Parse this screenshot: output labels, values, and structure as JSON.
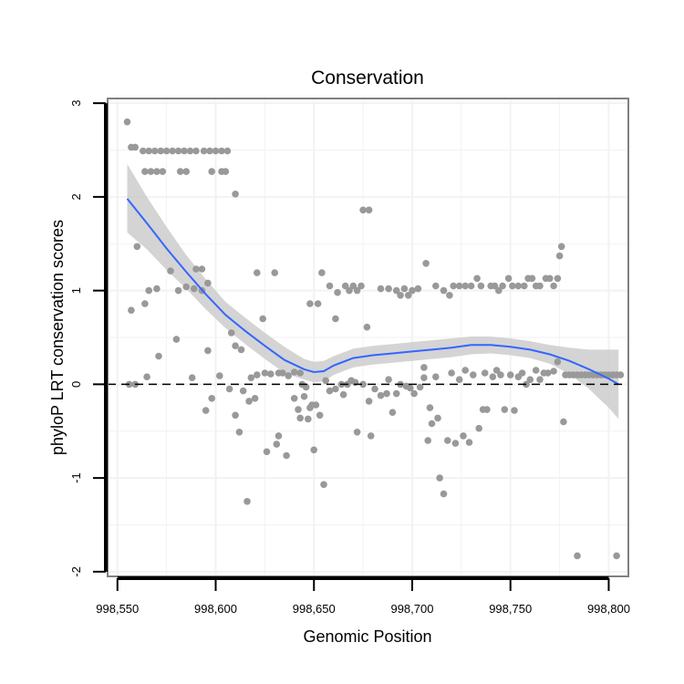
{
  "chart_data": {
    "type": "scatter",
    "title": "Conservation",
    "xlabel": "Genomic Position",
    "ylabel": "phyloP LRT conservation scores",
    "xlim": [
      998545,
      998810
    ],
    "ylim": [
      -2.05,
      3.05
    ],
    "x_ticks": [
      998550,
      998600,
      998650,
      998700,
      998750,
      998800
    ],
    "x_tick_labels": [
      "998,550",
      "998,600",
      "998,650",
      "998,700",
      "998,750",
      "998,800"
    ],
    "y_ticks": [
      -2,
      -1,
      0,
      1,
      2,
      3
    ],
    "y_tick_labels": [
      "-2",
      "-1",
      "0",
      "1",
      "2",
      "3"
    ],
    "reference_line_y": 0,
    "colors": {
      "points": "#999999",
      "smooth": "#3366FF",
      "ribbon": "#CCCCCC",
      "panel_border": "#808080",
      "grid": "#F2F2F2"
    },
    "points": [
      [
        998555,
        2.8
      ],
      [
        998557,
        2.53
      ],
      [
        998559,
        2.53
      ],
      [
        998563,
        2.49
      ],
      [
        998566,
        2.49
      ],
      [
        998569,
        2.49
      ],
      [
        998572,
        2.49
      ],
      [
        998575,
        2.49
      ],
      [
        998578,
        2.49
      ],
      [
        998581,
        2.49
      ],
      [
        998584,
        2.49
      ],
      [
        998587,
        2.49
      ],
      [
        998590,
        2.49
      ],
      [
        998594,
        2.49
      ],
      [
        998597,
        2.49
      ],
      [
        998600,
        2.49
      ],
      [
        998603,
        2.49
      ],
      [
        998606,
        2.49
      ],
      [
        998564,
        2.27
      ],
      [
        998567,
        2.27
      ],
      [
        998570,
        2.27
      ],
      [
        998573,
        2.27
      ],
      [
        998582,
        2.27
      ],
      [
        998585,
        2.27
      ],
      [
        998598,
        2.27
      ],
      [
        998603,
        2.27
      ],
      [
        998605,
        2.27
      ],
      [
        998610,
        2.03
      ],
      [
        998675,
        1.86
      ],
      [
        998678,
        1.86
      ],
      [
        998560,
        1.47
      ],
      [
        998776,
        1.47
      ],
      [
        998775,
        1.37
      ],
      [
        998577,
        1.21
      ],
      [
        998590,
        1.23
      ],
      [
        998593,
        1.23
      ],
      [
        998621,
        1.19
      ],
      [
        998630,
        1.19
      ],
      [
        998654,
        1.19
      ],
      [
        998707,
        1.29
      ],
      [
        998566,
        1.0
      ],
      [
        998570,
        1.02
      ],
      [
        998581,
        1.0
      ],
      [
        998585,
        1.04
      ],
      [
        998589,
        1.02
      ],
      [
        998593,
        1.0
      ],
      [
        998596,
        1.08
      ],
      [
        998652,
        0.86
      ],
      [
        998648,
        0.86
      ],
      [
        998658,
        1.05
      ],
      [
        998662,
        0.98
      ],
      [
        998666,
        1.05
      ],
      [
        998668,
        1.0
      ],
      [
        998670,
        1.05
      ],
      [
        998672,
        1.0
      ],
      [
        998674,
        1.05
      ],
      [
        998684,
        1.02
      ],
      [
        998688,
        1.02
      ],
      [
        998692,
        1.0
      ],
      [
        998694,
        0.95
      ],
      [
        998696,
        1.02
      ],
      [
        998698,
        0.95
      ],
      [
        998700,
        1.0
      ],
      [
        998703,
        1.02
      ],
      [
        998712,
        1.05
      ],
      [
        998716,
        1.0
      ],
      [
        998719,
        0.95
      ],
      [
        998721,
        1.05
      ],
      [
        998724,
        1.05
      ],
      [
        998727,
        1.05
      ],
      [
        998730,
        1.05
      ],
      [
        998733,
        1.13
      ],
      [
        998735,
        1.05
      ],
      [
        998740,
        1.05
      ],
      [
        998742,
        1.05
      ],
      [
        998744,
        1.0
      ],
      [
        998746,
        1.05
      ],
      [
        998749,
        1.13
      ],
      [
        998751,
        1.05
      ],
      [
        998754,
        1.05
      ],
      [
        998757,
        1.05
      ],
      [
        998759,
        1.13
      ],
      [
        998761,
        1.13
      ],
      [
        998763,
        1.05
      ],
      [
        998765,
        1.05
      ],
      [
        998768,
        1.13
      ],
      [
        998770,
        1.13
      ],
      [
        998772,
        1.05
      ],
      [
        998774,
        1.13
      ],
      [
        998557,
        0.79
      ],
      [
        998564,
        0.86
      ],
      [
        998580,
        0.48
      ],
      [
        998608,
        0.55
      ],
      [
        998610,
        0.41
      ],
      [
        998613,
        0.37
      ],
      [
        998624,
        0.7
      ],
      [
        998661,
        0.7
      ],
      [
        998677,
        0.61
      ],
      [
        998571,
        0.3
      ],
      [
        998588,
        0.07
      ],
      [
        998596,
        0.36
      ],
      [
        998556,
        0.0
      ],
      [
        998559,
        0.0
      ],
      [
        998565,
        0.08
      ],
      [
        998602,
        0.09
      ],
      [
        998607,
        -0.05
      ],
      [
        998598,
        -0.15
      ],
      [
        998595,
        -0.28
      ],
      [
        998610,
        -0.33
      ],
      [
        998612,
        -0.51
      ],
      [
        998614,
        -0.07
      ],
      [
        998616,
        -1.25
      ],
      [
        998618,
        0.07
      ],
      [
        998621,
        0.1
      ],
      [
        998625,
        0.12
      ],
      [
        998628,
        0.11
      ],
      [
        998632,
        0.12
      ],
      [
        998634,
        0.12
      ],
      [
        998637,
        0.09
      ],
      [
        998640,
        0.13
      ],
      [
        998643,
        0.12
      ],
      [
        998617,
        -0.18
      ],
      [
        998620,
        -0.15
      ],
      [
        998626,
        -0.72
      ],
      [
        998631,
        -0.64
      ],
      [
        998632,
        -0.55
      ],
      [
        998636,
        -0.76
      ],
      [
        998640,
        -0.15
      ],
      [
        998642,
        -0.27
      ],
      [
        998643,
        -0.36
      ],
      [
        998645,
        -0.13
      ],
      [
        998647,
        -0.37
      ],
      [
        998648,
        -0.25
      ],
      [
        998649,
        -0.22
      ],
      [
        998650,
        -0.7
      ],
      [
        998651,
        -0.22
      ],
      [
        998653,
        -0.33
      ],
      [
        998655,
        -1.07
      ],
      [
        998644,
        0.0
      ],
      [
        998646,
        -0.03
      ],
      [
        998656,
        0.04
      ],
      [
        998658,
        -0.07
      ],
      [
        998661,
        -0.05
      ],
      [
        998664,
        0.0
      ],
      [
        998667,
        0.0
      ],
      [
        998669,
        0.04
      ],
      [
        998671,
        0.02
      ],
      [
        998665,
        -0.11
      ],
      [
        998672,
        -0.51
      ],
      [
        998675,
        0.0
      ],
      [
        998678,
        -0.18
      ],
      [
        998679,
        -0.55
      ],
      [
        998681,
        -0.05
      ],
      [
        998684,
        -0.12
      ],
      [
        998687,
        -0.1
      ],
      [
        998690,
        -0.3
      ],
      [
        998688,
        0.05
      ],
      [
        998692,
        -0.1
      ],
      [
        998694,
        0.0
      ],
      [
        998697,
        -0.02
      ],
      [
        998699,
        -0.04
      ],
      [
        998701,
        -0.1
      ],
      [
        998704,
        -0.03
      ],
      [
        998706,
        0.07
      ],
      [
        998708,
        -0.6
      ],
      [
        998709,
        -0.25
      ],
      [
        998710,
        -0.42
      ],
      [
        998706,
        0.18
      ],
      [
        998712,
        0.08
      ],
      [
        998713,
        -0.36
      ],
      [
        998714,
        -1.0
      ],
      [
        998716,
        -1.17
      ],
      [
        998718,
        -0.6
      ],
      [
        998720,
        0.12
      ],
      [
        998722,
        -0.63
      ],
      [
        998724,
        0.05
      ],
      [
        998726,
        -0.55
      ],
      [
        998727,
        0.15
      ],
      [
        998729,
        -0.62
      ],
      [
        998731,
        0.1
      ],
      [
        998734,
        -0.47
      ],
      [
        998736,
        -0.27
      ],
      [
        998737,
        0.12
      ],
      [
        998738,
        -0.27
      ],
      [
        998741,
        0.08
      ],
      [
        998743,
        0.15
      ],
      [
        998745,
        0.1
      ],
      [
        998747,
        -0.27
      ],
      [
        998750,
        0.1
      ],
      [
        998752,
        -0.28
      ],
      [
        998754,
        0.08
      ],
      [
        998756,
        0.12
      ],
      [
        998758,
        0.0
      ],
      [
        998760,
        0.05
      ],
      [
        998763,
        0.15
      ],
      [
        998765,
        0.05
      ],
      [
        998767,
        0.12
      ],
      [
        998769,
        0.12
      ],
      [
        998772,
        0.14
      ],
      [
        998774,
        0.24
      ],
      [
        998777,
        -0.4
      ],
      [
        998778,
        0.1
      ],
      [
        998780,
        0.1
      ],
      [
        998782,
        0.1
      ],
      [
        998784,
        0.1
      ],
      [
        998786,
        0.1
      ],
      [
        998788,
        0.1
      ],
      [
        998790,
        0.1
      ],
      [
        998792,
        0.1
      ],
      [
        998794,
        0.1
      ],
      [
        998796,
        0.1
      ],
      [
        998798,
        0.1
      ],
      [
        998800,
        0.1
      ],
      [
        998802,
        0.1
      ],
      [
        998804,
        0.1
      ],
      [
        998806,
        0.1
      ],
      [
        998784,
        -1.83
      ],
      [
        998804,
        -1.83
      ]
    ],
    "smooth_line": {
      "x": [
        998555,
        998565,
        998575,
        998585,
        998595,
        998605,
        998615,
        998625,
        998635,
        998645,
        998650,
        998655,
        998660,
        998670,
        998680,
        998690,
        998700,
        998710,
        998720,
        998730,
        998740,
        998750,
        998760,
        998770,
        998780,
        998790,
        998800,
        998805
      ],
      "y": [
        1.98,
        1.72,
        1.45,
        1.2,
        0.96,
        0.74,
        0.57,
        0.41,
        0.26,
        0.16,
        0.13,
        0.14,
        0.2,
        0.28,
        0.31,
        0.33,
        0.35,
        0.37,
        0.39,
        0.42,
        0.42,
        0.4,
        0.37,
        0.32,
        0.25,
        0.16,
        0.06,
        0.0
      ],
      "ribbon_upper": [
        2.35,
        2.0,
        1.68,
        1.38,
        1.12,
        0.88,
        0.71,
        0.55,
        0.4,
        0.27,
        0.24,
        0.25,
        0.3,
        0.38,
        0.41,
        0.43,
        0.45,
        0.47,
        0.49,
        0.51,
        0.51,
        0.49,
        0.46,
        0.42,
        0.39,
        0.37,
        0.37,
        0.37
      ],
      "ribbon_lower": [
        1.62,
        1.44,
        1.22,
        1.02,
        0.8,
        0.6,
        0.43,
        0.27,
        0.12,
        0.05,
        0.02,
        0.03,
        0.1,
        0.18,
        0.21,
        0.23,
        0.25,
        0.27,
        0.29,
        0.32,
        0.33,
        0.31,
        0.28,
        0.22,
        0.11,
        -0.05,
        -0.25,
        -0.37
      ]
    }
  }
}
